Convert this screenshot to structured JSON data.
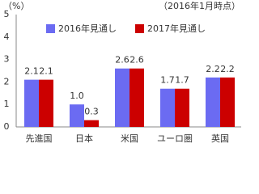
{
  "chart_data": {
    "type": "bar",
    "y_label": "（%）",
    "note": "（2016年1月時点）",
    "categories": [
      "先進国",
      "日本",
      "米国",
      "ユーロ圏",
      "英国"
    ],
    "series": [
      {
        "name": "2016年見通し",
        "color": "#6b6bf2",
        "values": [
          2.1,
          1.0,
          2.6,
          1.7,
          2.2
        ],
        "value_labels": [
          "2.1",
          "1.0",
          "2.6",
          "1.7",
          "2.2"
        ]
      },
      {
        "name": "2017年見通し",
        "color": "#cc0000",
        "values": [
          2.1,
          0.3,
          2.6,
          1.7,
          2.2
        ]
      }
    ],
    "ylim": [
      0,
      5
    ],
    "yticks": [
      0,
      1,
      2,
      3,
      4,
      5
    ],
    "grid": false,
    "legend": "top"
  }
}
